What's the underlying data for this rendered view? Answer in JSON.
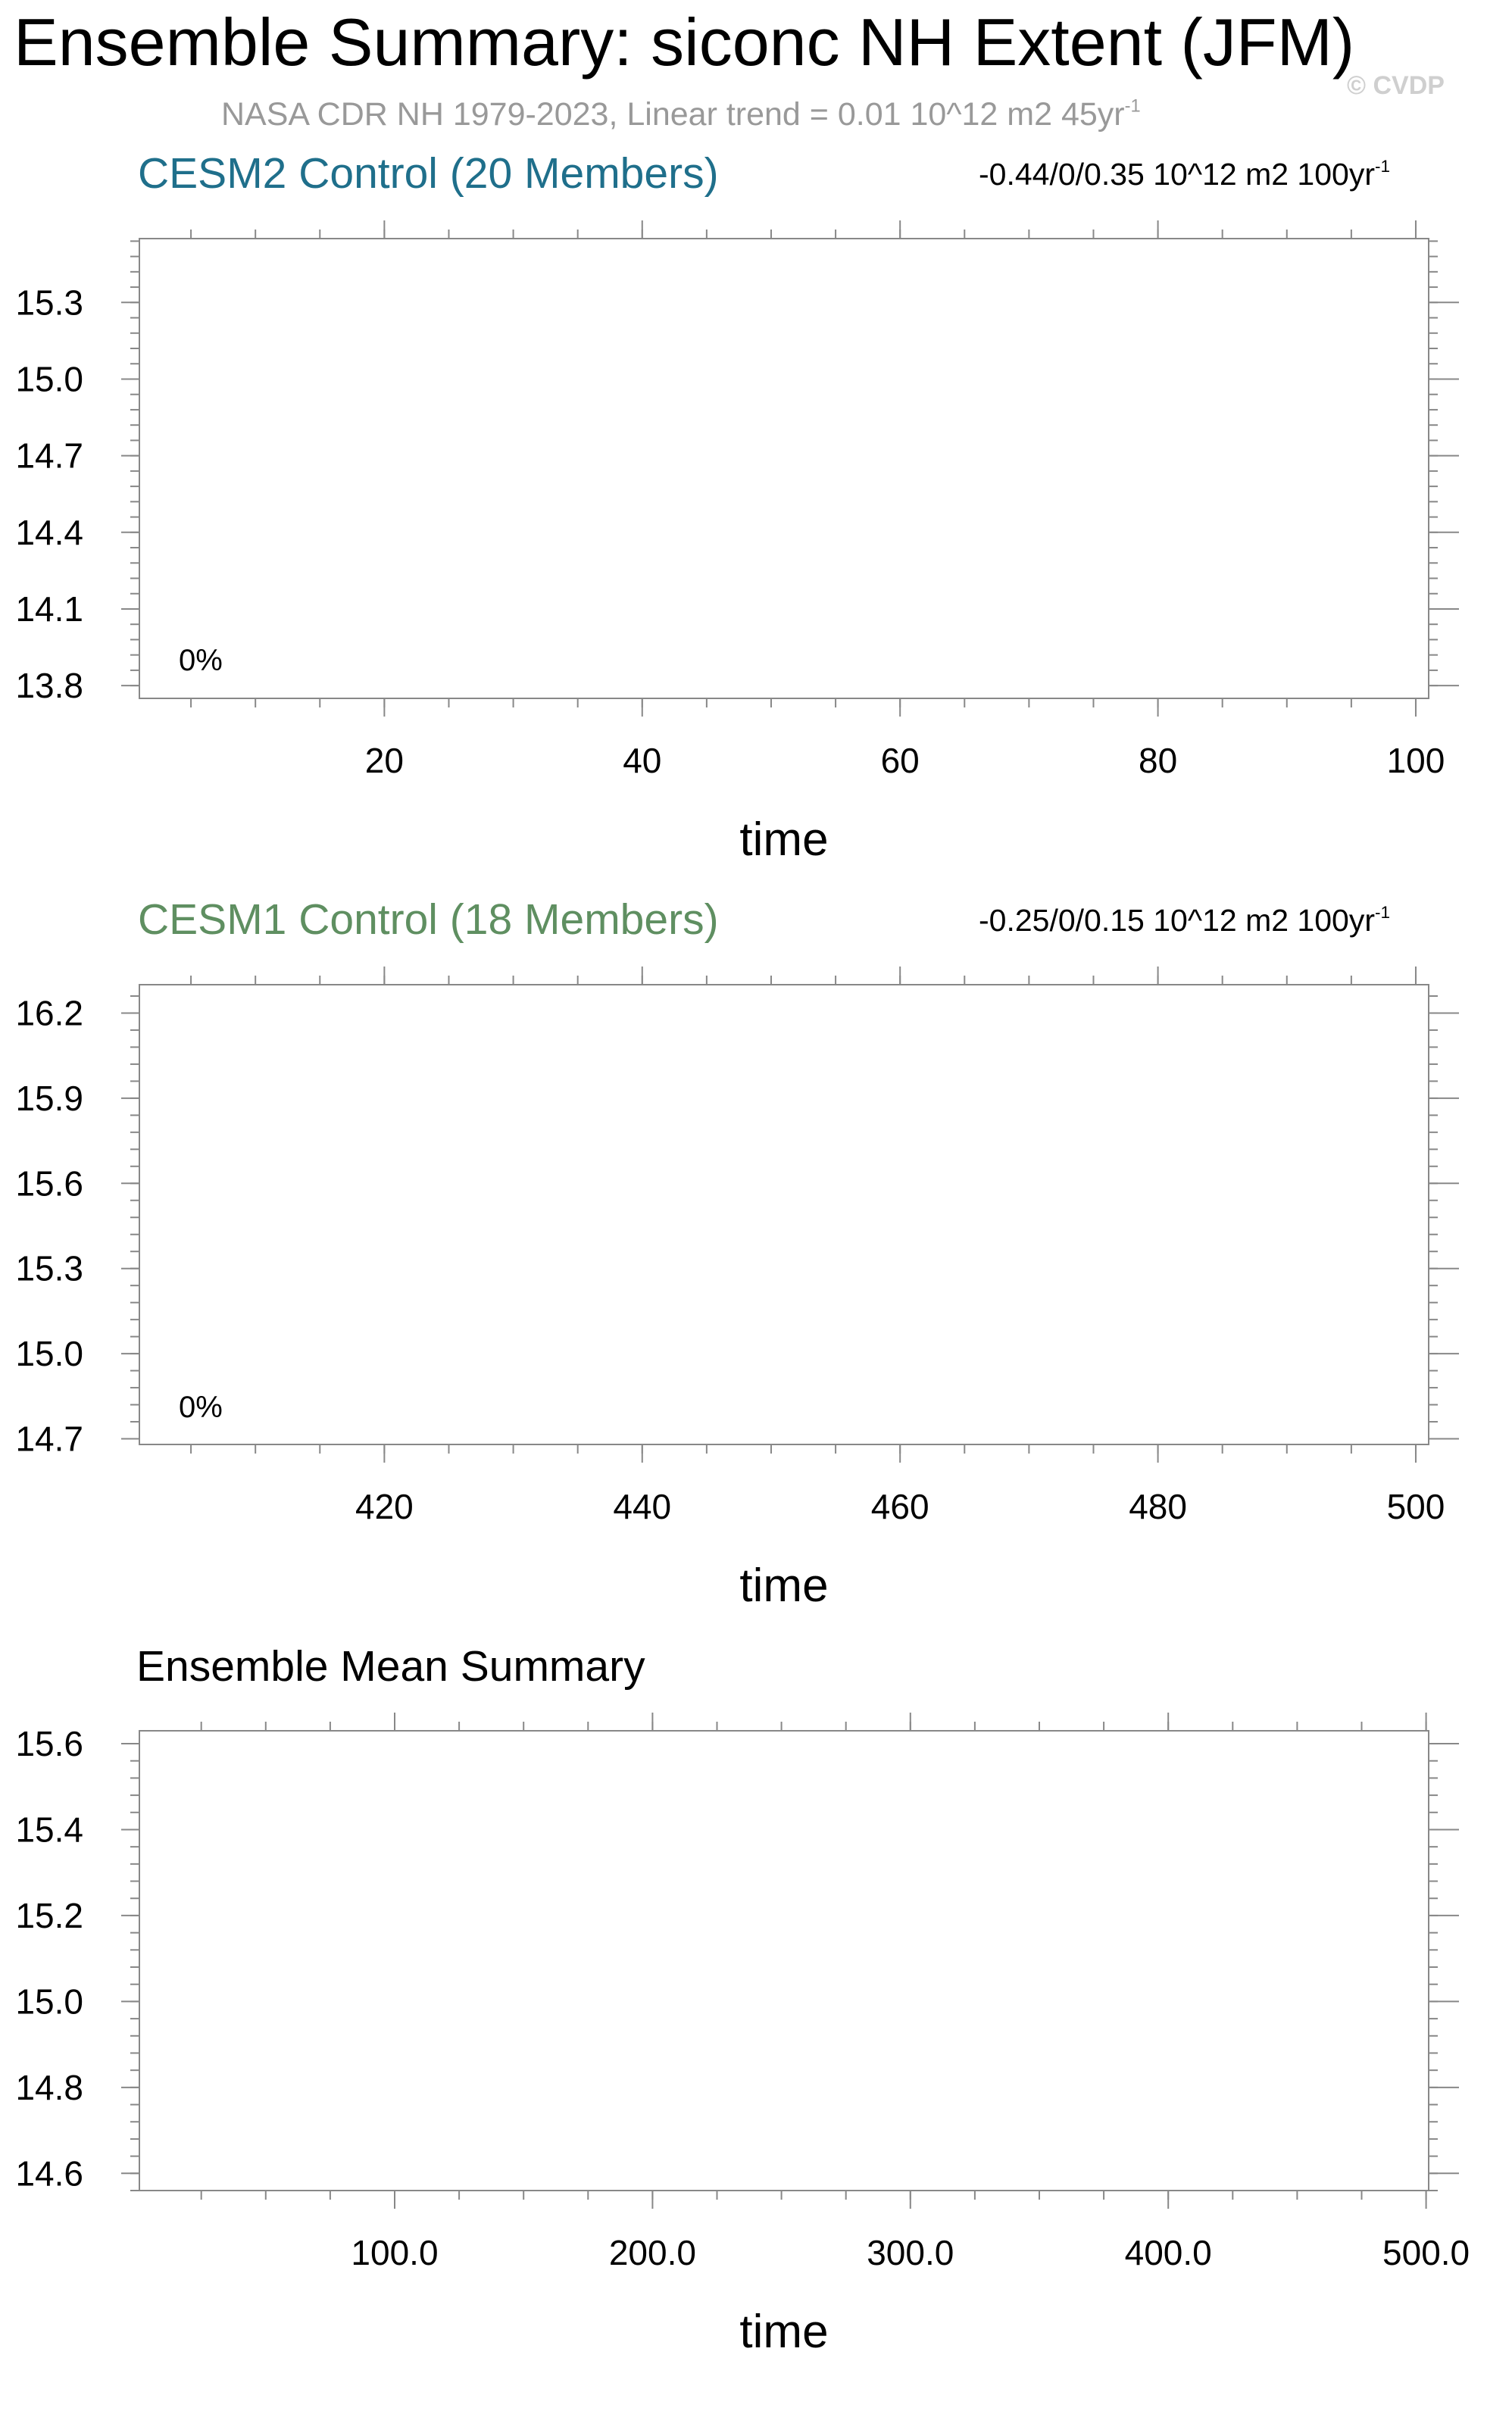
{
  "figure": {
    "title": "Ensemble Summary: siconc NH Extent (JFM)",
    "subtitle_main": "NASA CDR NH 1979-2023, Linear trend = 0.01 10^12 m2 45yr",
    "subtitle_sup": "-1",
    "watermark": "© CVDP"
  },
  "colors": {
    "cesm2": "#1f6f8b",
    "cesm1": "#5f8f61",
    "frame": "#888888"
  },
  "chart_data": [
    {
      "type": "line",
      "title": "CESM2 Control (20 Members)",
      "right_text": "-0.44/0/0.35 10^12 m2 100yr",
      "right_sup": "-1",
      "annotation": "0%",
      "xlabel": "time",
      "xlim": [
        1,
        101
      ],
      "ylim": [
        13.75,
        15.55
      ],
      "xticks": [
        20,
        40,
        60,
        80,
        100
      ],
      "xtick_labels": [
        "20",
        "40",
        "60",
        "80",
        "100"
      ],
      "x_minor_step": 5,
      "yticks": [
        13.8,
        14.1,
        14.4,
        14.7,
        15.0,
        15.3
      ],
      "ytick_labels": [
        "13.8",
        "14.1",
        "14.4",
        "14.7",
        "15.0",
        "15.3"
      ],
      "y_minor_step": 0.06,
      "series": []
    },
    {
      "type": "line",
      "title": "CESM1 Control (18 Members)",
      "right_text": "-0.25/0/0.15 10^12 m2 100yr",
      "right_sup": "-1",
      "annotation": "0%",
      "xlabel": "time",
      "xlim": [
        401,
        501
      ],
      "ylim": [
        14.68,
        16.3
      ],
      "xticks": [
        420,
        440,
        460,
        480,
        500
      ],
      "xtick_labels": [
        "420",
        "440",
        "460",
        "480",
        "500"
      ],
      "x_minor_step": 5,
      "yticks": [
        14.7,
        15.0,
        15.3,
        15.6,
        15.9,
        16.2
      ],
      "ytick_labels": [
        "14.7",
        "15.0",
        "15.3",
        "15.6",
        "15.9",
        "16.2"
      ],
      "y_minor_step": 0.06,
      "series": []
    },
    {
      "type": "line",
      "title": "Ensemble Mean Summary",
      "right_text": "",
      "right_sup": "",
      "annotation": "",
      "xlabel": "time",
      "xlim": [
        1,
        501
      ],
      "ylim": [
        14.56,
        15.63
      ],
      "xticks": [
        100,
        200,
        300,
        400,
        500
      ],
      "xtick_labels": [
        "100.0",
        "200.0",
        "300.0",
        "400.0",
        "500.0"
      ],
      "x_minor_step": 25,
      "yticks": [
        14.6,
        14.8,
        15.0,
        15.2,
        15.4,
        15.6
      ],
      "ytick_labels": [
        "14.6",
        "14.8",
        "15.0",
        "15.2",
        "15.4",
        "15.6"
      ],
      "y_minor_step": 0.04,
      "series": []
    }
  ]
}
